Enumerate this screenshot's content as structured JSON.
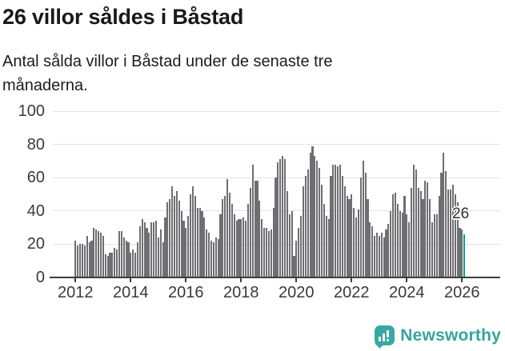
{
  "header": {
    "title": "26 villor såldes i Båstad",
    "subtitle": "Antal sålda villor i Båstad under de senaste tre månaderna."
  },
  "chart_data": {
    "type": "bar",
    "title": "26 villor såldes i Båstad",
    "subtitle": "Antal sålda villor i Båstad under de senaste tre månaderna.",
    "unit": "antal sålda villor (rullande tre månader)",
    "x_start": "2012-01",
    "x_end": "2026-02",
    "x_tick_labels": [
      "2012",
      "2014",
      "2016",
      "2018",
      "2020",
      "2022",
      "2024",
      "2026"
    ],
    "y_ticks": [
      0,
      20,
      40,
      60,
      80,
      100
    ],
    "ylim": [
      0,
      100
    ],
    "grid": true,
    "legend": "none",
    "bar_color": "#6f6e73",
    "highlight_color": "#00a59b",
    "highlight_index": 169,
    "highlight_label": "26",
    "values": [
      22,
      19,
      20,
      20,
      19,
      25,
      21,
      22,
      30,
      29,
      28,
      27,
      25,
      14,
      13,
      15,
      15,
      18,
      17,
      28,
      28,
      24,
      22,
      21,
      15,
      17,
      15,
      21,
      31,
      35,
      33,
      30,
      27,
      33,
      33,
      34,
      24,
      29,
      21,
      36,
      45,
      47,
      55,
      49,
      52,
      46,
      40,
      34,
      30,
      37,
      50,
      55,
      49,
      42,
      42,
      40,
      36,
      29,
      27,
      22,
      21,
      24,
      23,
      38,
      47,
      49,
      59,
      51,
      44,
      38,
      34,
      35,
      35,
      36,
      34,
      44,
      54,
      68,
      58,
      58,
      46,
      35,
      30,
      30,
      28,
      29,
      42,
      60,
      69,
      71,
      73,
      71,
      52,
      38,
      40,
      13,
      22,
      30,
      37,
      55,
      61,
      65,
      75,
      79,
      73,
      70,
      66,
      56,
      44,
      37,
      35,
      61,
      68,
      68,
      67,
      68,
      61,
      55,
      49,
      47,
      50,
      42,
      36,
      41,
      60,
      70,
      63,
      47,
      33,
      31,
      25,
      27,
      25,
      27,
      24,
      29,
      32,
      40,
      50,
      51,
      44,
      40,
      39,
      49,
      38,
      33,
      54,
      68,
      65,
      54,
      52,
      47,
      58,
      57,
      47,
      33,
      38,
      38,
      49,
      63,
      75,
      64,
      53,
      53,
      56,
      50,
      45,
      30,
      29,
      26
    ]
  },
  "footer": {
    "brand": "Newsworthy"
  }
}
